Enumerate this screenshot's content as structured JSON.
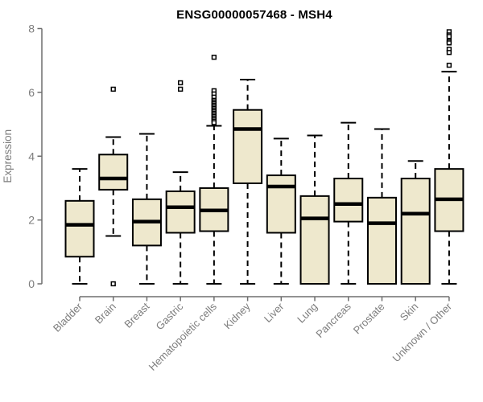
{
  "title": "ENSG00000057468 - MSH4",
  "colors": {
    "background": "#ffffff",
    "box_fill": "#EEE8CD",
    "box_stroke": "#000000",
    "median_stroke": "#000000",
    "whisker_stroke": "#000000",
    "outlier_stroke": "#000000",
    "axis_line": "#6e6e6e",
    "axis_text": "#7d7d7d",
    "title_color": "#000000"
  },
  "chart_data": {
    "type": "boxplot",
    "title": "ENSG00000057468 - MSH4",
    "xlabel": "",
    "ylabel": "Expression",
    "ylim": [
      0,
      8
    ],
    "yticks": [
      0,
      2,
      4,
      6,
      8
    ],
    "grid": false,
    "legend": null,
    "categories": [
      "Bladder",
      "Brain",
      "Breast",
      "Gastric",
      "Hematopoietic cells",
      "Kidney",
      "Liver",
      "Lung",
      "Pancreas",
      "Prostate",
      "Skin",
      "Unknown / Other"
    ],
    "boxes": [
      {
        "category": "Bladder",
        "whisker_low": 0,
        "q1": 0.85,
        "median": 1.85,
        "q3": 2.6,
        "whisker_high": 3.6,
        "outliers": []
      },
      {
        "category": "Brain",
        "whisker_low": 1.5,
        "q1": 2.95,
        "median": 3.3,
        "q3": 4.05,
        "whisker_high": 4.6,
        "outliers": [
          6.1,
          0
        ]
      },
      {
        "category": "Breast",
        "whisker_low": 0,
        "q1": 1.2,
        "median": 1.95,
        "q3": 2.65,
        "whisker_high": 4.7,
        "outliers": []
      },
      {
        "category": "Gastric",
        "whisker_low": 0,
        "q1": 1.6,
        "median": 2.4,
        "q3": 2.9,
        "whisker_high": 3.5,
        "outliers": [
          6.3,
          6.1
        ]
      },
      {
        "category": "Hematopoietic cells",
        "whisker_low": 0,
        "q1": 1.65,
        "median": 2.3,
        "q3": 3.0,
        "whisker_high": 4.95,
        "outliers": [
          7.1,
          6.05,
          5.95,
          5.85,
          5.75,
          5.7,
          5.65,
          5.6,
          5.55,
          5.5,
          5.45,
          5.4,
          5.35,
          5.3,
          5.25,
          5.2,
          5.15,
          5.1,
          5.05
        ]
      },
      {
        "category": "Kidney",
        "whisker_low": 0,
        "q1": 3.15,
        "median": 4.85,
        "q3": 5.45,
        "whisker_high": 6.4,
        "outliers": []
      },
      {
        "category": "Liver",
        "whisker_low": 0,
        "q1": 1.6,
        "median": 3.05,
        "q3": 3.4,
        "whisker_high": 4.55,
        "outliers": []
      },
      {
        "category": "Lung",
        "whisker_low": 0,
        "q1": 0,
        "median": 2.05,
        "q3": 2.75,
        "whisker_high": 4.65,
        "outliers": []
      },
      {
        "category": "Pancreas",
        "whisker_low": 0,
        "q1": 1.95,
        "median": 2.5,
        "q3": 3.3,
        "whisker_high": 5.05,
        "outliers": []
      },
      {
        "category": "Prostate",
        "whisker_low": 0,
        "q1": 0,
        "median": 1.9,
        "q3": 2.7,
        "whisker_high": 4.85,
        "outliers": []
      },
      {
        "category": "Skin",
        "whisker_low": 0,
        "q1": 0,
        "median": 2.2,
        "q3": 3.3,
        "whisker_high": 3.85,
        "outliers": []
      },
      {
        "category": "Unknown / Other",
        "whisker_low": 0,
        "q1": 1.65,
        "median": 2.65,
        "q3": 3.6,
        "whisker_high": 6.65,
        "outliers": [
          7.9,
          7.8,
          7.75,
          7.6,
          7.55,
          7.35,
          7.25,
          6.85
        ]
      }
    ]
  }
}
